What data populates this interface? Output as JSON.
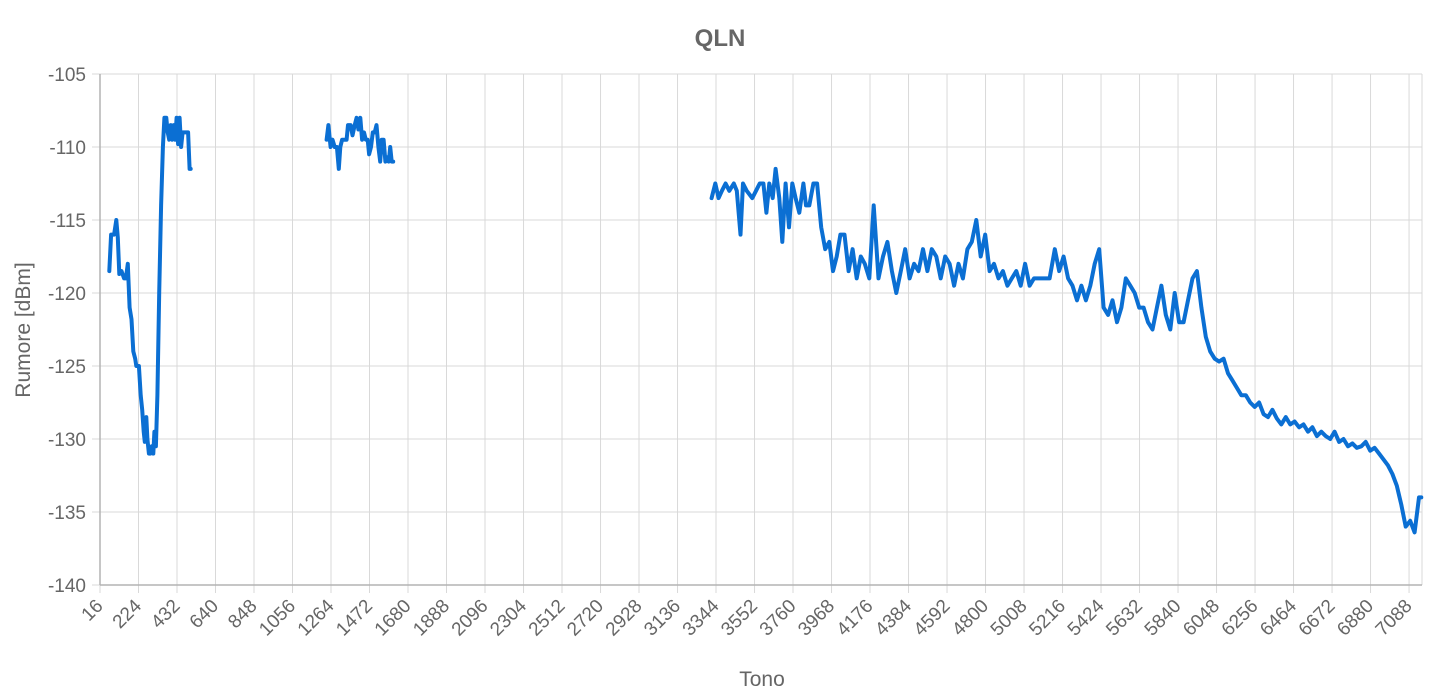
{
  "chart_data": {
    "type": "line",
    "title": "QLN",
    "xlabel": "Tono",
    "ylabel": "Rumore [dBm]",
    "xlim": [
      16,
      7158
    ],
    "ylim": [
      -140,
      -105
    ],
    "yticks": [
      -105,
      -110,
      -115,
      -120,
      -125,
      -130,
      -135,
      -140
    ],
    "xticks": [
      16,
      224,
      432,
      640,
      848,
      1056,
      1264,
      1472,
      1680,
      1888,
      2096,
      2304,
      2512,
      2720,
      2928,
      3136,
      3344,
      3552,
      3760,
      3968,
      4176,
      4384,
      4592,
      4800,
      5008,
      5216,
      5424,
      5632,
      5840,
      6048,
      6256,
      6464,
      6672,
      6880,
      7088
    ],
    "grid": true,
    "legend": "none",
    "color": "#0b6fd3",
    "series": [
      {
        "segments": [
          [
            [
              66,
              -118.5
            ],
            [
              76,
              -116
            ],
            [
              92,
              -116
            ],
            [
              104,
              -115
            ],
            [
              112,
              -116.2
            ],
            [
              120,
              -118.7
            ],
            [
              132,
              -118.5
            ],
            [
              146,
              -119
            ],
            [
              156,
              -119
            ],
            [
              166,
              -118
            ],
            [
              176,
              -121
            ],
            [
              186,
              -121.8
            ],
            [
              196,
              -124
            ],
            [
              206,
              -124.5
            ],
            [
              212,
              -125
            ],
            [
              226,
              -125
            ],
            [
              236,
              -127
            ],
            [
              244,
              -128
            ],
            [
              252,
              -129.5
            ],
            [
              258,
              -130.2
            ],
            [
              266,
              -128.5
            ],
            [
              272,
              -130
            ],
            [
              280,
              -131
            ],
            [
              288,
              -131
            ],
            [
              296,
              -130.5
            ],
            [
              304,
              -131
            ],
            [
              310,
              -129.5
            ],
            [
              318,
              -130.5
            ],
            [
              326,
              -127
            ],
            [
              336,
              -120
            ],
            [
              346,
              -114
            ],
            [
              356,
              -110
            ],
            [
              364,
              -108
            ],
            [
              374,
              -108
            ],
            [
              382,
              -109
            ],
            [
              390,
              -109.5
            ],
            [
              398,
              -108.5
            ],
            [
              406,
              -109.5
            ],
            [
              414,
              -108.5
            ],
            [
              422,
              -109.5
            ],
            [
              430,
              -108
            ],
            [
              438,
              -109.8
            ],
            [
              446,
              -108
            ],
            [
              454,
              -110
            ],
            [
              462,
              -109
            ],
            [
              470,
              -109
            ],
            [
              478,
              -109
            ],
            [
              492,
              -109
            ],
            [
              500,
              -111.5
            ],
            [
              506,
              -111.5
            ]
          ],
          [
            [
              1240,
              -109.5
            ],
            [
              1250,
              -108.5
            ],
            [
              1262,
              -110
            ],
            [
              1272,
              -109.5
            ],
            [
              1284,
              -110
            ],
            [
              1296,
              -110
            ],
            [
              1306,
              -111.5
            ],
            [
              1314,
              -110
            ],
            [
              1324,
              -109.5
            ],
            [
              1336,
              -109.5
            ],
            [
              1348,
              -109.5
            ],
            [
              1356,
              -108.5
            ],
            [
              1370,
              -108.5
            ],
            [
              1380,
              -109.2
            ],
            [
              1392,
              -108.5
            ],
            [
              1402,
              -108
            ],
            [
              1412,
              -108.8
            ],
            [
              1422,
              -108
            ],
            [
              1432,
              -109.5
            ],
            [
              1442,
              -109
            ],
            [
              1452,
              -109.5
            ],
            [
              1462,
              -109.5
            ],
            [
              1470,
              -110.5
            ],
            [
              1480,
              -110
            ],
            [
              1490,
              -109
            ],
            [
              1500,
              -109
            ],
            [
              1510,
              -108.5
            ],
            [
              1520,
              -110
            ],
            [
              1530,
              -111
            ],
            [
              1538,
              -109.5
            ],
            [
              1548,
              -109.5
            ],
            [
              1558,
              -111
            ],
            [
              1566,
              -110.7
            ],
            [
              1576,
              -111
            ],
            [
              1584,
              -110
            ],
            [
              1592,
              -111
            ],
            [
              1600,
              -111
            ]
          ],
          [
            [
              3320,
              -113.5
            ],
            [
              3340,
              -112.5
            ],
            [
              3358,
              -113.5
            ],
            [
              3376,
              -113
            ],
            [
              3396,
              -112.5
            ],
            [
              3416,
              -113
            ],
            [
              3440,
              -112.5
            ],
            [
              3456,
              -113
            ],
            [
              3476,
              -116
            ],
            [
              3490,
              -112.5
            ],
            [
              3510,
              -113
            ],
            [
              3540,
              -113.5
            ],
            [
              3560,
              -113
            ],
            [
              3580,
              -112.5
            ],
            [
              3600,
              -112.5
            ],
            [
              3616,
              -114.5
            ],
            [
              3632,
              -112.5
            ],
            [
              3650,
              -113.5
            ],
            [
              3666,
              -111.5
            ],
            [
              3686,
              -113.5
            ],
            [
              3702,
              -116.5
            ],
            [
              3720,
              -112.5
            ],
            [
              3738,
              -115.5
            ],
            [
              3756,
              -112.5
            ],
            [
              3774,
              -113.5
            ],
            [
              3794,
              -114.5
            ],
            [
              3816,
              -112.5
            ],
            [
              3830,
              -114
            ],
            [
              3848,
              -114
            ],
            [
              3870,
              -112.5
            ],
            [
              3890,
              -112.5
            ],
            [
              3912,
              -115.5
            ],
            [
              3934,
              -117
            ],
            [
              3956,
              -116.5
            ],
            [
              3976,
              -118.5
            ],
            [
              3996,
              -117.5
            ],
            [
              4016,
              -116
            ],
            [
              4038,
              -116
            ],
            [
              4060,
              -118.5
            ],
            [
              4082,
              -117
            ],
            [
              4104,
              -119
            ],
            [
              4126,
              -117.5
            ],
            [
              4148,
              -118
            ],
            [
              4172,
              -119
            ],
            [
              4196,
              -114
            ],
            [
              4222,
              -119
            ],
            [
              4246,
              -117.5
            ],
            [
              4270,
              -116.5
            ],
            [
              4294,
              -118.5
            ],
            [
              4318,
              -120
            ],
            [
              4342,
              -118.5
            ],
            [
              4366,
              -117
            ],
            [
              4390,
              -119
            ],
            [
              4414,
              -118
            ],
            [
              4438,
              -118.5
            ],
            [
              4462,
              -117
            ],
            [
              4486,
              -118.5
            ],
            [
              4510,
              -117
            ],
            [
              4534,
              -117.5
            ],
            [
              4558,
              -119
            ],
            [
              4582,
              -117.5
            ],
            [
              4606,
              -118
            ],
            [
              4630,
              -119.5
            ],
            [
              4654,
              -118
            ],
            [
              4678,
              -119
            ],
            [
              4702,
              -117
            ],
            [
              4726,
              -116.5
            ],
            [
              4750,
              -115
            ],
            [
              4774,
              -117.5
            ],
            [
              4798,
              -116
            ],
            [
              4822,
              -118.5
            ],
            [
              4846,
              -118
            ],
            [
              4870,
              -119
            ],
            [
              4894,
              -118.5
            ],
            [
              4918,
              -119.5
            ],
            [
              4942,
              -119
            ],
            [
              4966,
              -118.5
            ],
            [
              4990,
              -119.5
            ],
            [
              5014,
              -118
            ],
            [
              5038,
              -119.5
            ],
            [
              5062,
              -119
            ],
            [
              5090,
              -119
            ],
            [
              5118,
              -119
            ],
            [
              5146,
              -119
            ],
            [
              5174,
              -117
            ],
            [
              5198,
              -118.5
            ],
            [
              5222,
              -117.5
            ],
            [
              5246,
              -119
            ],
            [
              5270,
              -119.5
            ],
            [
              5294,
              -120.5
            ],
            [
              5318,
              -119.5
            ],
            [
              5342,
              -120.5
            ],
            [
              5366,
              -119.5
            ],
            [
              5390,
              -118
            ],
            [
              5414,
              -117
            ],
            [
              5438,
              -121
            ],
            [
              5462,
              -121.5
            ],
            [
              5486,
              -120.5
            ],
            [
              5510,
              -122
            ],
            [
              5534,
              -121
            ],
            [
              5558,
              -119
            ],
            [
              5582,
              -119.5
            ],
            [
              5606,
              -120
            ],
            [
              5630,
              -121
            ],
            [
              5654,
              -121
            ],
            [
              5678,
              -122
            ],
            [
              5702,
              -122.5
            ],
            [
              5726,
              -121
            ],
            [
              5750,
              -119.5
            ],
            [
              5774,
              -121.5
            ],
            [
              5798,
              -122.5
            ],
            [
              5822,
              -120
            ],
            [
              5846,
              -122
            ],
            [
              5870,
              -122
            ],
            [
              5894,
              -120.5
            ],
            [
              5918,
              -119
            ],
            [
              5942,
              -118.5
            ],
            [
              5966,
              -121
            ],
            [
              5990,
              -123
            ],
            [
              6014,
              -124
            ],
            [
              6038,
              -124.5
            ],
            [
              6062,
              -124.7
            ],
            [
              6086,
              -124.5
            ],
            [
              6110,
              -125.5
            ],
            [
              6134,
              -126
            ],
            [
              6158,
              -126.5
            ],
            [
              6182,
              -127
            ],
            [
              6206,
              -127
            ],
            [
              6230,
              -127.5
            ],
            [
              6254,
              -127.8
            ],
            [
              6278,
              -127.5
            ],
            [
              6302,
              -128.3
            ],
            [
              6326,
              -128.5
            ],
            [
              6350,
              -128
            ],
            [
              6374,
              -128.6
            ],
            [
              6398,
              -129
            ],
            [
              6422,
              -128.5
            ],
            [
              6446,
              -129
            ],
            [
              6470,
              -128.8
            ],
            [
              6494,
              -129.2
            ],
            [
              6518,
              -129
            ],
            [
              6542,
              -129.5
            ],
            [
              6566,
              -129.2
            ],
            [
              6590,
              -129.8
            ],
            [
              6614,
              -129.5
            ],
            [
              6638,
              -129.8
            ],
            [
              6662,
              -130
            ],
            [
              6686,
              -129.5
            ],
            [
              6710,
              -130.2
            ],
            [
              6734,
              -130
            ],
            [
              6758,
              -130.5
            ],
            [
              6782,
              -130.3
            ],
            [
              6806,
              -130.6
            ],
            [
              6830,
              -130.5
            ],
            [
              6854,
              -130.2
            ],
            [
              6878,
              -130.8
            ],
            [
              6902,
              -130.6
            ],
            [
              6926,
              -131
            ],
            [
              6950,
              -131.4
            ],
            [
              6974,
              -131.8
            ],
            [
              6998,
              -132.4
            ],
            [
              7022,
              -133.2
            ],
            [
              7046,
              -134.5
            ],
            [
              7070,
              -136
            ],
            [
              7094,
              -135.6
            ],
            [
              7118,
              -136.4
            ],
            [
              7142,
              -134
            ],
            [
              7154,
              -134
            ]
          ]
        ]
      }
    ]
  }
}
